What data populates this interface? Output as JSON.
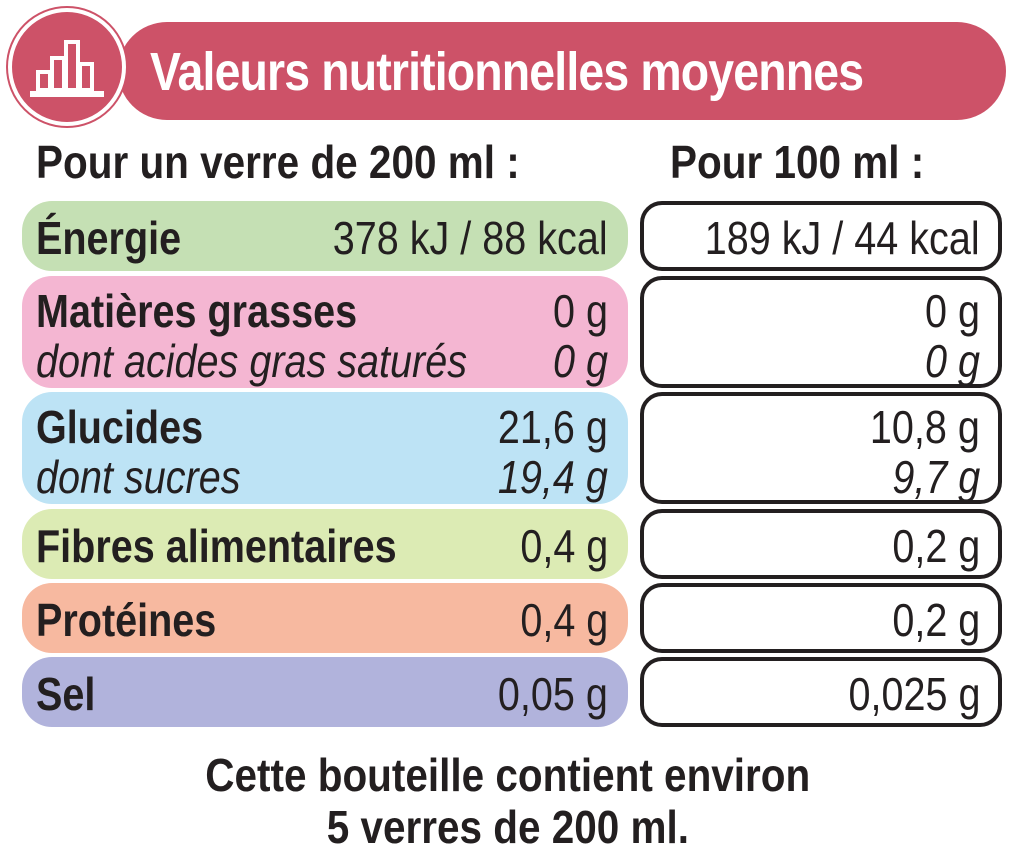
{
  "header": {
    "title": "Valeurs nutritionnelles moyennes",
    "logo_icon": "bar-chart-icon",
    "color_banner": "#cd5268"
  },
  "columns": {
    "per_glass": "Pour un verre de 200 ml :",
    "per_100ml": "Pour 100 ml :"
  },
  "rows": [
    {
      "label": "Énergie",
      "glass_value": "378 kJ / 88 kcal",
      "per100_value": "189 kJ / 44 kcal",
      "color": "#c5e0b4"
    },
    {
      "label": "Matières grasses",
      "glass_value": "0 g",
      "per100_value": "0 g",
      "sub_label": "dont acides gras saturés",
      "sub_glass_value": "0 g",
      "sub_per100_value": "0 g",
      "color": "#f4b6d2"
    },
    {
      "label": "Glucides",
      "glass_value": "21,6 g",
      "per100_value": "10,8 g",
      "sub_label": "dont sucres",
      "sub_glass_value": "19,4 g",
      "sub_per100_value": "9,7 g",
      "color": "#bde3f5"
    },
    {
      "label": "Fibres alimentaires",
      "glass_value": "0,4 g",
      "per100_value": "0,2 g",
      "color": "#dcebb4"
    },
    {
      "label": "Protéines",
      "glass_value": "0,4 g",
      "per100_value": "0,2 g",
      "color": "#f7b9a0"
    },
    {
      "label": "Sel",
      "glass_value": "0,05 g",
      "per100_value": "0,025 g",
      "color": "#b1b3dc"
    }
  ],
  "footer": {
    "line1": "Cette bouteille contient environ",
    "line2": "5 verres de 200 ml."
  }
}
